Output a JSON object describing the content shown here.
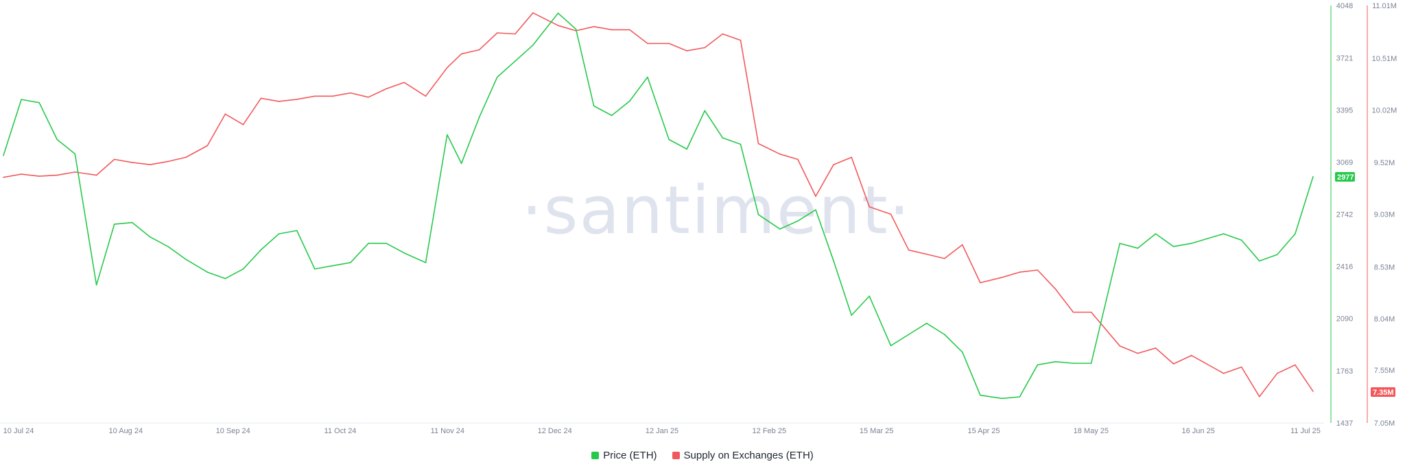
{
  "watermark": "·santiment·",
  "colors": {
    "price": "#26c94a",
    "supply": "#f2585b",
    "axis": "#e6e8ee"
  },
  "legend": {
    "price_label": "Price (ETH)",
    "supply_label": "Supply on Exchanges (ETH)"
  },
  "badges": {
    "price_last": "2977",
    "supply_last": "7.35M"
  },
  "chart_data": {
    "type": "line",
    "x": [
      "2024-07-10",
      "2024-07-15",
      "2024-07-20",
      "2024-07-25",
      "2024-07-30",
      "2024-08-05",
      "2024-08-10",
      "2024-08-15",
      "2024-08-20",
      "2024-08-25",
      "2024-08-30",
      "2024-09-05",
      "2024-09-10",
      "2024-09-15",
      "2024-09-20",
      "2024-09-25",
      "2024-09-30",
      "2024-10-05",
      "2024-10-10",
      "2024-10-15",
      "2024-10-20",
      "2024-10-25",
      "2024-10-30",
      "2024-11-05",
      "2024-11-11",
      "2024-11-15",
      "2024-11-20",
      "2024-11-25",
      "2024-11-30",
      "2024-12-05",
      "2024-12-12",
      "2024-12-17",
      "2024-12-22",
      "2024-12-27",
      "2025-01-01",
      "2025-01-06",
      "2025-01-12",
      "2025-01-17",
      "2025-01-22",
      "2025-01-27",
      "2025-02-01",
      "2025-02-06",
      "2025-02-12",
      "2025-02-17",
      "2025-02-22",
      "2025-02-27",
      "2025-03-04",
      "2025-03-09",
      "2025-03-15",
      "2025-03-20",
      "2025-03-25",
      "2025-03-30",
      "2025-04-04",
      "2025-04-09",
      "2025-04-15",
      "2025-04-20",
      "2025-04-25",
      "2025-04-30",
      "2025-05-05",
      "2025-05-10",
      "2025-05-18",
      "2025-05-23",
      "2025-05-28",
      "2025-06-02",
      "2025-06-07",
      "2025-06-16",
      "2025-06-21",
      "2025-06-26",
      "2025-07-01",
      "2025-07-06",
      "2025-07-11"
    ],
    "series": [
      {
        "name": "Price (ETH)",
        "axis": "left",
        "values": [
          3110,
          3460,
          3440,
          3210,
          3120,
          2300,
          2680,
          2690,
          2600,
          2540,
          2460,
          2380,
          2340,
          2400,
          2520,
          2620,
          2640,
          2400,
          2420,
          2440,
          2560,
          2560,
          2500,
          2440,
          3240,
          3060,
          3350,
          3600,
          3700,
          3800,
          4000,
          3900,
          3420,
          3360,
          3450,
          3600,
          3210,
          3150,
          3390,
          3220,
          3180,
          2740,
          2650,
          2700,
          2770,
          2450,
          2110,
          2230,
          1920,
          1990,
          2060,
          1990,
          1880,
          1610,
          1590,
          1600,
          1800,
          1820,
          1810,
          1810,
          2560,
          2530,
          2620,
          2540,
          2560,
          2620,
          2580,
          2450,
          2490,
          2620,
          2977
        ]
      },
      {
        "name": "Supply on Exchanges (ETH)",
        "axis": "right",
        "values": [
          9.38,
          9.41,
          9.39,
          9.4,
          9.43,
          9.4,
          9.55,
          9.52,
          9.5,
          9.53,
          9.57,
          9.68,
          9.98,
          9.88,
          10.13,
          10.1,
          10.12,
          10.15,
          10.15,
          10.18,
          10.14,
          10.22,
          10.28,
          10.15,
          10.42,
          10.55,
          10.59,
          10.75,
          10.74,
          10.94,
          10.82,
          10.77,
          10.81,
          10.78,
          10.78,
          10.65,
          10.65,
          10.58,
          10.61,
          10.74,
          10.68,
          9.7,
          9.6,
          9.55,
          9.2,
          9.5,
          9.57,
          9.1,
          9.03,
          8.69,
          8.65,
          8.61,
          8.74,
          8.38,
          8.43,
          8.48,
          8.5,
          8.32,
          8.1,
          8.1,
          7.78,
          7.71,
          7.76,
          7.61,
          7.69,
          7.52,
          7.58,
          7.3,
          7.52,
          7.6,
          7.35
        ]
      }
    ],
    "x_tick_labels": [
      "10 Jul 24",
      "10 Aug 24",
      "10 Sep 24",
      "11 Oct 24",
      "11 Nov 24",
      "12 Dec 24",
      "12 Jan 25",
      "12 Feb 25",
      "15 Mar 25",
      "15 Apr 25",
      "18 May 25",
      "16 Jun 25",
      "11 Jul 25"
    ],
    "left_axis_ticks": [
      4048,
      3721,
      3395,
      3069,
      2742,
      2416,
      2090,
      1763,
      1437
    ],
    "right_axis_ticks": [
      "11.01M",
      "10.51M",
      "10.02M",
      "9.52M",
      "9.03M",
      "8.53M",
      "8.04M",
      "7.55M",
      "7.05M"
    ],
    "left_range": [
      1437,
      4048
    ],
    "right_range": [
      7.05,
      11.01
    ],
    "grid": false,
    "legend_position": "bottom-center"
  }
}
